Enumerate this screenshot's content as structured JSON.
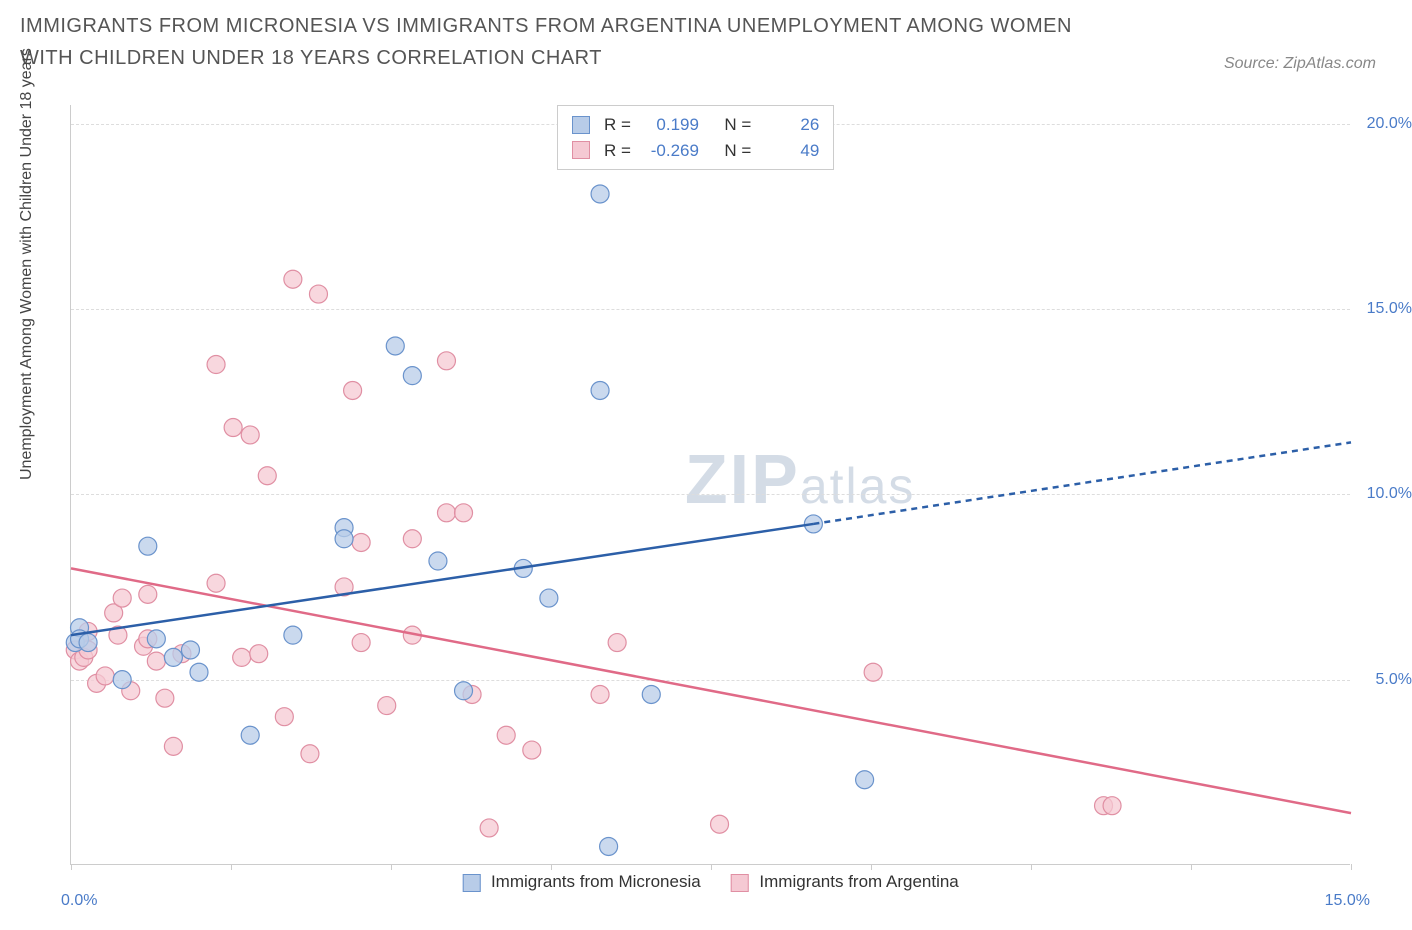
{
  "title": "IMMIGRANTS FROM MICRONESIA VS IMMIGRANTS FROM ARGENTINA UNEMPLOYMENT AMONG WOMEN WITH CHILDREN UNDER 18 YEARS CORRELATION CHART",
  "source": "Source: ZipAtlas.com",
  "y_axis_label": "Unemployment Among Women with Children Under 18 years",
  "watermark_zip": "ZIP",
  "watermark_atlas": "atlas",
  "legend": {
    "series_a": "Immigrants from Micronesia",
    "series_b": "Immigrants from Argentina",
    "r_label": "R =",
    "n_label": "N =",
    "r_a": "0.199",
    "n_a": "26",
    "r_b": "-0.269",
    "n_b": "49"
  },
  "chart": {
    "type": "scatter",
    "xlim": [
      0,
      15
    ],
    "ylim": [
      0,
      20.5
    ],
    "x_tick_label_min": "0.0%",
    "x_tick_label_max": "15.0%",
    "x_ticks": [
      0,
      1.875,
      3.75,
      5.625,
      7.5,
      9.375,
      11.25,
      13.125,
      15.0
    ],
    "y_ticks": [
      5,
      10,
      15,
      20
    ],
    "y_tick_labels": [
      "5.0%",
      "10.0%",
      "15.0%",
      "20.0%"
    ],
    "background_color": "#ffffff",
    "grid_color": "#dddddd",
    "axis_label_color": "#4a7bc8",
    "series": {
      "micronesia": {
        "fill": "#b8cce8",
        "stroke": "#6a93cc",
        "line_color": "#2c5fa8",
        "marker_radius": 9,
        "points": [
          [
            0.05,
            6.0
          ],
          [
            0.1,
            6.4
          ],
          [
            0.1,
            6.1
          ],
          [
            0.2,
            6.0
          ],
          [
            0.6,
            5.0
          ],
          [
            0.9,
            8.6
          ],
          [
            1.0,
            6.1
          ],
          [
            1.2,
            5.6
          ],
          [
            1.4,
            5.8
          ],
          [
            1.5,
            5.2
          ],
          [
            2.1,
            3.5
          ],
          [
            2.6,
            6.2
          ],
          [
            3.2,
            9.1
          ],
          [
            3.2,
            8.8
          ],
          [
            3.8,
            14.0
          ],
          [
            4.0,
            13.2
          ],
          [
            4.3,
            8.2
          ],
          [
            4.6,
            4.7
          ],
          [
            5.3,
            8.0
          ],
          [
            5.6,
            7.2
          ],
          [
            6.2,
            12.8
          ],
          [
            6.3,
            0.5
          ],
          [
            6.8,
            4.6
          ],
          [
            8.7,
            9.2
          ],
          [
            9.3,
            2.3
          ],
          [
            6.2,
            18.1
          ]
        ],
        "trend_solid": [
          [
            0,
            6.2
          ],
          [
            8.7,
            9.2
          ]
        ],
        "trend_dashed": [
          [
            8.7,
            9.2
          ],
          [
            15,
            11.4
          ]
        ]
      },
      "argentina": {
        "fill": "#f5c9d3",
        "stroke": "#e08fa3",
        "line_color": "#e06a87",
        "marker_radius": 9,
        "points": [
          [
            0.05,
            5.8
          ],
          [
            0.1,
            5.5
          ],
          [
            0.15,
            5.6
          ],
          [
            0.2,
            6.3
          ],
          [
            0.2,
            5.8
          ],
          [
            0.3,
            4.9
          ],
          [
            0.4,
            5.1
          ],
          [
            0.5,
            6.8
          ],
          [
            0.55,
            6.2
          ],
          [
            0.6,
            7.2
          ],
          [
            0.7,
            4.7
          ],
          [
            0.85,
            5.9
          ],
          [
            0.9,
            6.1
          ],
          [
            0.9,
            7.3
          ],
          [
            1.0,
            5.5
          ],
          [
            1.1,
            4.5
          ],
          [
            1.2,
            3.2
          ],
          [
            1.3,
            5.7
          ],
          [
            1.7,
            13.5
          ],
          [
            1.7,
            7.6
          ],
          [
            1.9,
            11.8
          ],
          [
            2.0,
            5.6
          ],
          [
            2.1,
            11.6
          ],
          [
            2.2,
            5.7
          ],
          [
            2.3,
            10.5
          ],
          [
            2.5,
            4.0
          ],
          [
            2.6,
            15.8
          ],
          [
            2.8,
            3.0
          ],
          [
            2.9,
            15.4
          ],
          [
            3.2,
            7.5
          ],
          [
            3.3,
            12.8
          ],
          [
            3.4,
            8.7
          ],
          [
            3.4,
            6.0
          ],
          [
            3.7,
            4.3
          ],
          [
            4.0,
            6.2
          ],
          [
            4.0,
            8.8
          ],
          [
            4.4,
            9.5
          ],
          [
            4.4,
            13.6
          ],
          [
            4.6,
            9.5
          ],
          [
            4.7,
            4.6
          ],
          [
            4.9,
            1.0
          ],
          [
            5.1,
            3.5
          ],
          [
            5.4,
            3.1
          ],
          [
            6.2,
            4.6
          ],
          [
            6.4,
            6.0
          ],
          [
            7.6,
            1.1
          ],
          [
            9.4,
            5.2
          ],
          [
            12.1,
            1.6
          ],
          [
            12.2,
            1.6
          ]
        ],
        "trend_solid": [
          [
            0,
            8.0
          ],
          [
            15,
            1.4
          ]
        ]
      }
    }
  }
}
